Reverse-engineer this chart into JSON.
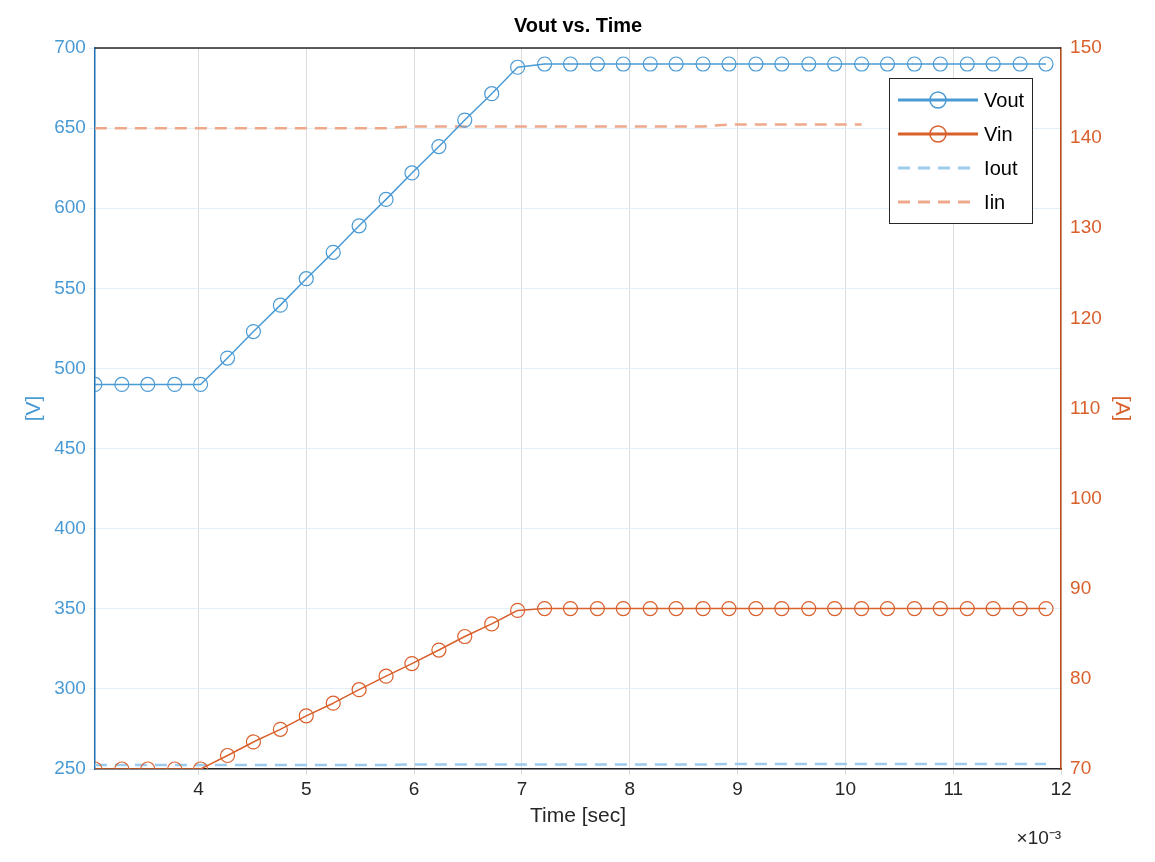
{
  "chart_data": {
    "type": "line",
    "title": "Vout vs. Time",
    "xlabel": "Time [sec]",
    "ylabel": "[V]",
    "y2label": "[A]",
    "annotations": [
      "×10⁻³"
    ],
    "x": [
      3.04,
      3.29,
      3.53,
      3.78,
      4.02,
      4.27,
      4.51,
      4.76,
      5.0,
      5.25,
      5.49,
      5.74,
      5.98,
      6.23,
      6.47,
      6.72,
      6.96,
      7.21,
      7.45,
      7.7,
      7.94,
      8.19,
      8.43,
      8.68,
      8.92,
      9.17,
      9.41,
      9.66,
      9.9,
      10.15,
      10.39,
      10.64,
      10.88,
      11.13,
      11.37,
      11.62,
      11.86
    ],
    "series": [
      {
        "name": "Vout",
        "color": "#4a9ad4",
        "marker": "circle",
        "line_style": "solid",
        "values": [
          490,
          490,
          490,
          490,
          490,
          506.5,
          523,
          539.5,
          556,
          572.5,
          589,
          605.5,
          622,
          638.5,
          655,
          671.5,
          688,
          690,
          690,
          690,
          690,
          690,
          690,
          690,
          690,
          690,
          690,
          690,
          690,
          690,
          690,
          690,
          690,
          690,
          690,
          690,
          690
        ]
      },
      {
        "name": "Vin",
        "color": "#d95f2b",
        "axis": "y2",
        "marker": "circle",
        "line_style": "solid",
        "values": [
          70,
          70,
          70,
          70,
          70,
          71.5,
          73,
          74.4,
          75.9,
          77.3,
          78.8,
          80.3,
          81.7,
          83.2,
          84.7,
          86.1,
          87.6,
          87.8,
          87.8,
          87.8,
          87.8,
          87.8,
          87.8,
          87.8,
          87.8,
          87.8,
          87.8,
          87.8,
          87.8,
          87.8,
          87.8,
          87.8,
          87.8,
          87.8,
          87.8,
          87.8,
          87.8
        ]
      },
      {
        "name": "Iout",
        "color": "#9ccbee",
        "marker": "none",
        "line_style": "dashed",
        "values": [
          252.5,
          252.5,
          252.5,
          252.5,
          252.5,
          252.5,
          252.5,
          252.5,
          252.5,
          252.5,
          252.5,
          252.5,
          252.8,
          252.8,
          252.8,
          252.8,
          252.8,
          252.8,
          252.8,
          252.8,
          252.8,
          252.8,
          252.8,
          252.8,
          253.1,
          253.1,
          253.1,
          253.1,
          253.1,
          253.1,
          253.1,
          253.1,
          253.1,
          253.1,
          253.1,
          253.1,
          253.1
        ]
      },
      {
        "name": "Iin",
        "color": "#eea98a",
        "axis": "y2",
        "marker": "none",
        "line_style": "dashed",
        "values": [
          141.1,
          141.1,
          141.1,
          141.1,
          141.1,
          141.1,
          141.1,
          141.1,
          141.1,
          141.1,
          141.1,
          141.1,
          141.3,
          141.3,
          141.3,
          141.3,
          141.3,
          141.3,
          141.3,
          141.3,
          141.3,
          141.3,
          141.3,
          141.3,
          141.5,
          141.5,
          141.5,
          141.5,
          141.5,
          141.5,
          null,
          null,
          null,
          null,
          null,
          null,
          null
        ]
      }
    ],
    "xlim": [
      3.04,
      12
    ],
    "xticks": [
      4,
      5,
      6,
      7,
      8,
      9,
      10,
      11,
      12
    ],
    "ylim": [
      250,
      700
    ],
    "yticks": [
      250,
      300,
      350,
      400,
      450,
      500,
      550,
      600,
      650,
      700
    ],
    "y2lim": [
      70,
      150
    ],
    "y2ticks": [
      70,
      80,
      90,
      100,
      110,
      120,
      130,
      140,
      150
    ],
    "grid": true,
    "legend": "top right"
  }
}
